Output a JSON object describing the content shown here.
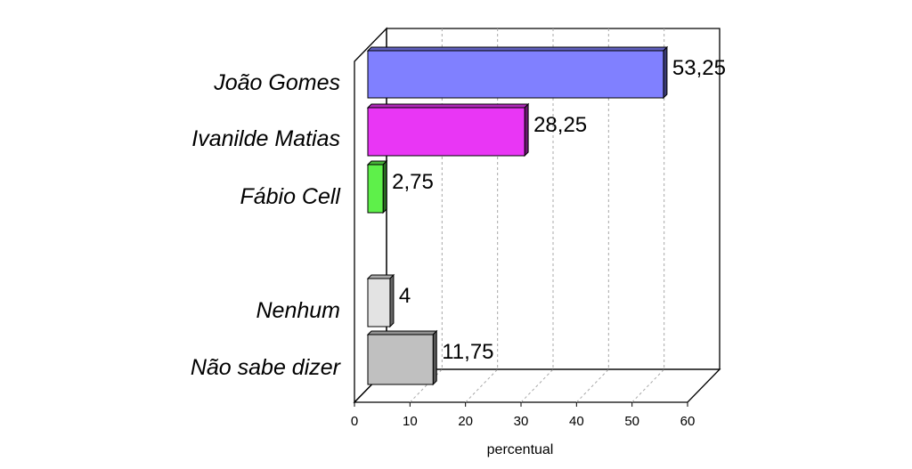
{
  "chart_data": {
    "type": "bar",
    "orientation": "horizontal",
    "three_d": true,
    "categories": [
      "João Gomes",
      "Ivanilde Matias",
      "Fábio Cell",
      "Nenhum",
      "Não sabe dizer"
    ],
    "values": [
      53.25,
      28.25,
      2.75,
      4,
      11.75
    ],
    "value_labels": [
      "53,25",
      "28,25",
      "2,75",
      "4",
      "11,75"
    ],
    "colors": [
      "#8080ff",
      "#e936f5",
      "#5ef04a",
      "#e3e3e3",
      "#c0c0c0"
    ],
    "xlabel": "percentual",
    "xlim": [
      0,
      60
    ],
    "xticks": [
      "0",
      "10",
      "20",
      "30",
      "40",
      "50",
      "60"
    ],
    "grid": "vertical-dashed",
    "legend": "none"
  }
}
